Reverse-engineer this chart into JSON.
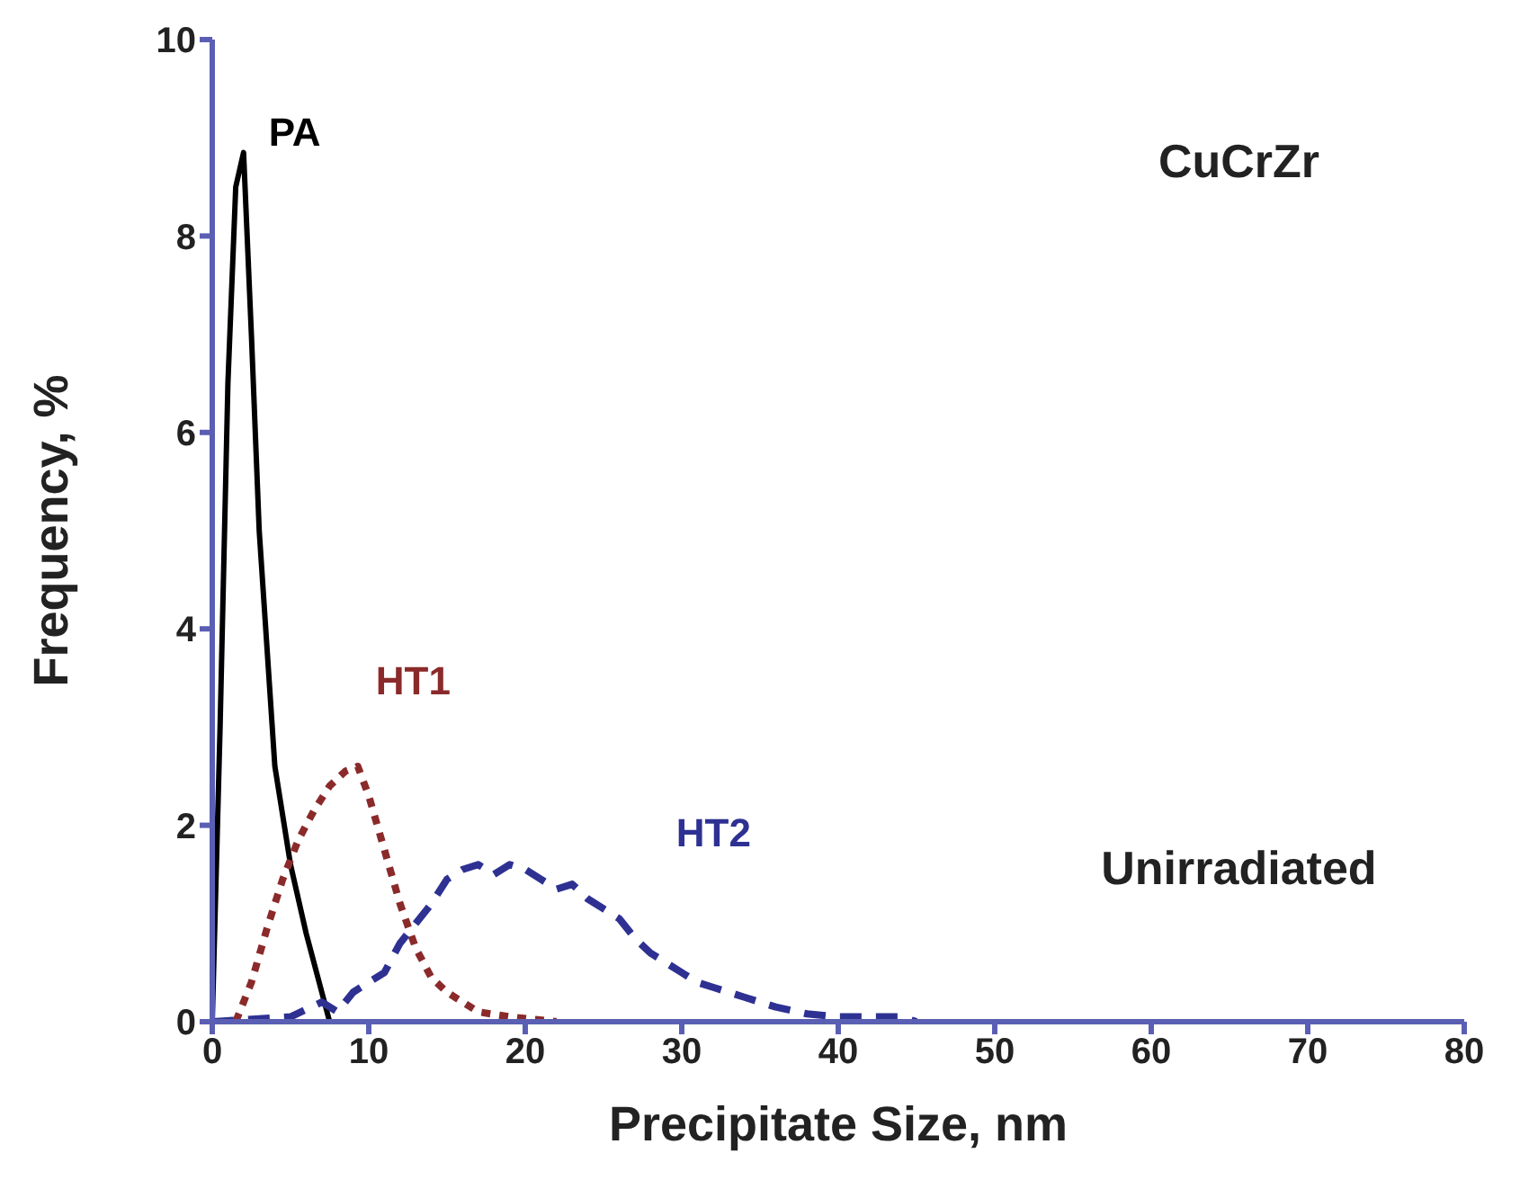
{
  "chart_data": {
    "type": "line",
    "xlabel": "Precipitate Size, nm",
    "ylabel": "Frequency, %",
    "xlim": [
      0,
      80
    ],
    "xticks": [
      0,
      10,
      20,
      30,
      40,
      50,
      60,
      70,
      80
    ],
    "ylim": [
      0,
      10
    ],
    "yticks": [
      0,
      2,
      4,
      6,
      8,
      10
    ],
    "grid": false,
    "legend": false,
    "marker": "none",
    "annotations": [
      "CuCrZr",
      "Unirradiated"
    ],
    "series": [
      {
        "name": "PA",
        "color": "#000000",
        "line_style": "solid",
        "x": [
          0,
          0.5,
          1,
          1.5,
          2,
          2.5,
          3,
          3.5,
          4,
          5,
          6,
          7,
          7.5
        ],
        "values": [
          0,
          3,
          6.5,
          8.5,
          8.85,
          7,
          5,
          3.8,
          2.6,
          1.6,
          0.9,
          0.3,
          0
        ]
      },
      {
        "name": "HT1",
        "color": "#8b2a2a",
        "line_style": "dotted",
        "x": [
          1.5,
          2.5,
          3.5,
          4.5,
          5.5,
          6.5,
          7.5,
          8.5,
          9.3,
          10,
          11,
          12,
          13,
          14,
          15,
          16,
          17,
          19,
          22
        ],
        "values": [
          0,
          0.4,
          0.95,
          1.45,
          1.85,
          2.15,
          2.4,
          2.55,
          2.6,
          2.3,
          1.75,
          1.2,
          0.75,
          0.45,
          0.3,
          0.2,
          0.1,
          0.05,
          0
        ]
      },
      {
        "name": "HT2",
        "color": "#2e3192",
        "line_style": "dashed",
        "x": [
          0,
          5,
          7,
          8,
          9,
          10,
          11,
          12,
          13,
          14,
          15,
          16,
          17,
          18,
          19,
          20,
          21,
          22,
          23,
          24,
          25,
          26,
          27,
          28,
          29,
          30,
          31,
          32,
          33,
          34,
          35,
          36,
          38,
          40,
          44,
          45
        ],
        "values": [
          0,
          0.05,
          0.2,
          0.1,
          0.3,
          0.4,
          0.5,
          0.8,
          1.0,
          1.2,
          1.45,
          1.55,
          1.6,
          1.5,
          1.6,
          1.55,
          1.45,
          1.35,
          1.4,
          1.25,
          1.15,
          1.05,
          0.85,
          0.7,
          0.6,
          0.5,
          0.4,
          0.35,
          0.3,
          0.25,
          0.2,
          0.15,
          0.08,
          0.05,
          0.05,
          0
        ]
      }
    ]
  }
}
